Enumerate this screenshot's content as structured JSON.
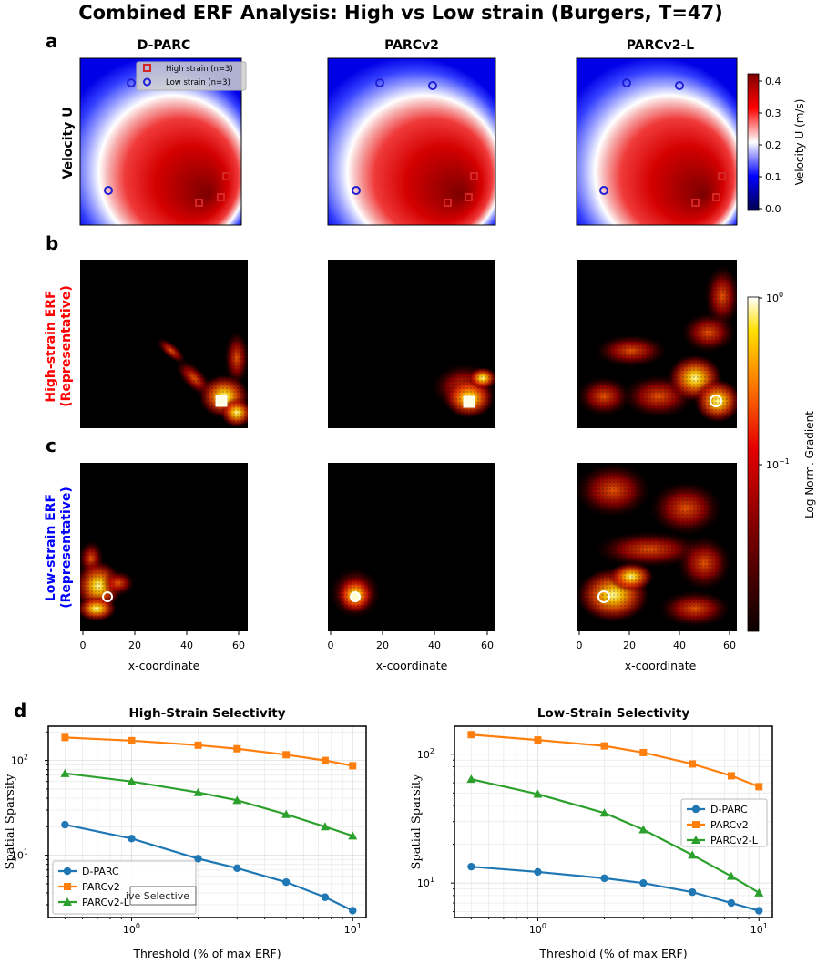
{
  "figure": {
    "title": "Combined ERF Analysis: High vs Low strain (Burgers, T=47)",
    "panel_labels": {
      "a": "a",
      "b": "b",
      "c": "c",
      "d": "d"
    },
    "columns": [
      "D-PARC",
      "PARCv2",
      "PARCv2-L"
    ],
    "row_labels": {
      "velocity": "Velocity U",
      "high_line1": "High-strain ERF",
      "high_line2": "(Representative)",
      "low_line1": "Low-strain ERF",
      "low_line2": "(Representative)"
    },
    "x_axis_label": "x-coordinate",
    "x_ticks": [
      "0",
      "20",
      "40",
      "60"
    ],
    "legend": {
      "high": "High strain (n=3)",
      "low": "Low strain (n=3)"
    },
    "colors": {
      "high_strain": "#d62728",
      "low_strain": "#1f1fd6",
      "dparc": "#1f77b4",
      "parcv2": "#ff7f0e",
      "parcv2l": "#2ca02c"
    }
  },
  "colorbars": {
    "velocity": {
      "label": "Velocity U (m/s)",
      "ticks": [
        "0.0",
        "0.1",
        "0.2",
        "0.3",
        "0.4"
      ]
    },
    "erf": {
      "label": "Log Norm. Gradient",
      "ticks": [
        {
          "base": "10",
          "exp": "0"
        },
        {
          "base": "10",
          "exp": "−1"
        }
      ]
    }
  },
  "chart_data": [
    {
      "type": "line",
      "title": "High-Strain Selectivity",
      "xlabel": "Threshold (% of max ERF)",
      "ylabel": "Spatial Sparsity",
      "xscale": "log",
      "yscale": "log",
      "xlim": [
        0.42,
        11.5
      ],
      "ylim": [
        2.2,
        230
      ],
      "x": [
        0.5,
        1,
        2,
        3,
        5,
        7.5,
        10
      ],
      "x_ticks": [
        {
          "base": "10",
          "exp": "0",
          "value": 1
        },
        {
          "base": "10",
          "exp": "1",
          "value": 10
        }
      ],
      "y_ticks": [
        {
          "base": "10",
          "exp": "1",
          "value": 10
        },
        {
          "base": "10",
          "exp": "2",
          "value": 100
        }
      ],
      "grid": true,
      "legend_position": "lower-left",
      "legend_title_partial": "ive Selective",
      "series": [
        {
          "name": "D-PARC",
          "marker": "circle",
          "values": [
            21,
            15,
            9.2,
            7.3,
            5.2,
            3.6,
            2.6
          ]
        },
        {
          "name": "PARCv2",
          "marker": "square",
          "values": [
            175,
            162,
            145,
            133,
            115,
            100,
            88
          ]
        },
        {
          "name": "PARCv2-L",
          "marker": "triangle",
          "values": [
            73,
            60,
            46,
            38,
            27,
            20,
            16
          ]
        }
      ]
    },
    {
      "type": "line",
      "title": "Low-Strain Selectivity",
      "xlabel": "Threshold (% of max ERF)",
      "ylabel": "Spatial Sparsity",
      "xscale": "log",
      "yscale": "log",
      "xlim": [
        0.42,
        11.5
      ],
      "ylim": [
        5.4,
        165
      ],
      "x": [
        0.5,
        1,
        2,
        3,
        5,
        7.5,
        10
      ],
      "x_ticks": [
        {
          "base": "10",
          "exp": "0",
          "value": 1
        },
        {
          "base": "10",
          "exp": "1",
          "value": 10
        }
      ],
      "y_ticks": [
        {
          "base": "10",
          "exp": "1",
          "value": 10
        },
        {
          "base": "10",
          "exp": "2",
          "value": 100
        }
      ],
      "grid": true,
      "legend_position": "center-right",
      "series": [
        {
          "name": "D-PARC",
          "marker": "circle",
          "values": [
            13.4,
            12.2,
            10.9,
            10,
            8.5,
            7,
            6.1
          ]
        },
        {
          "name": "PARCv2",
          "marker": "square",
          "values": [
            142,
            129,
            116,
            103,
            84,
            68,
            56
          ]
        },
        {
          "name": "PARCv2-L",
          "marker": "triangle",
          "values": [
            64,
            49,
            35,
            26,
            16.5,
            11.3,
            8.4
          ]
        }
      ]
    }
  ]
}
